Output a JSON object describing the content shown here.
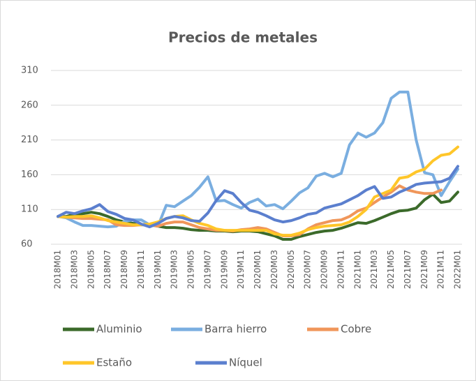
{
  "chart_data": {
    "type": "line",
    "title": "Precios de metales",
    "categories": [
      "2018M01",
      null,
      "2018M03",
      null,
      "2018M05",
      null,
      "2018M07",
      null,
      "2018M09",
      null,
      "2018M11",
      null,
      "2019M01",
      null,
      "2019M03",
      null,
      "2019M05",
      null,
      "2019M07",
      null,
      "2019M09",
      null,
      "2019M11",
      null,
      "2020M01",
      null,
      "2020M03",
      null,
      "2020M05",
      null,
      "2020M07",
      null,
      "2020M09",
      null,
      "2020M11",
      null,
      "2021M01",
      null,
      "2021M03",
      null,
      "2021M05",
      null,
      "2021M07",
      null,
      "2021M09",
      null,
      "2021M11",
      null,
      "2022M01"
    ],
    "series": [
      {
        "name": "Aluminio",
        "color": "#3b6a2a",
        "values": [
          100,
          100,
          103,
          104,
          106,
          104,
          100,
          95,
          92,
          90,
          88,
          88,
          86,
          84,
          84,
          83,
          81,
          80,
          80,
          79,
          79,
          78,
          79,
          79,
          78,
          75,
          72,
          67,
          67,
          71,
          74,
          77,
          79,
          80,
          83,
          87,
          91,
          90,
          94,
          99,
          104,
          108,
          109,
          112,
          124,
          132,
          120,
          122,
          135
        ]
      },
      {
        "name": "Barra hierro",
        "color": "#7aaee0",
        "values": [
          100,
          98,
          92,
          87,
          87,
          86,
          85,
          86,
          93,
          95,
          95,
          88,
          86,
          116,
          114,
          122,
          130,
          142,
          157,
          122,
          123,
          117,
          112,
          120,
          125,
          115,
          117,
          111,
          122,
          134,
          141,
          158,
          162,
          157,
          162,
          203,
          220,
          214,
          220,
          235,
          270,
          279,
          279,
          210,
          163,
          160,
          130,
          150,
          168
        ]
      },
      {
        "name": "Cobre",
        "color": "#f0965a",
        "values": [
          100,
          99,
          98,
          97,
          97,
          96,
          95,
          88,
          87,
          87,
          88,
          88,
          86,
          90,
          92,
          92,
          88,
          84,
          82,
          80,
          80,
          79,
          81,
          82,
          84,
          82,
          77,
          72,
          72,
          74,
          82,
          88,
          91,
          94,
          95,
          100,
          108,
          112,
          120,
          128,
          135,
          144,
          138,
          135,
          133,
          133,
          138,
          null,
          null
        ]
      },
      {
        "name": "Estaño",
        "color": "#ffc629",
        "values": [
          100,
          99,
          100,
          100,
          101,
          98,
          94,
          92,
          90,
          88,
          88,
          89,
          92,
          97,
          100,
          101,
          95,
          90,
          87,
          82,
          80,
          80,
          80,
          80,
          80,
          80,
          75,
          73,
          73,
          76,
          81,
          84,
          86,
          87,
          88,
          92,
          100,
          110,
          128,
          133,
          138,
          155,
          157,
          164,
          168,
          180,
          188,
          190,
          200
        ]
      },
      {
        "name": "Níquel",
        "color": "#5b7fce",
        "values": [
          100,
          106,
          104,
          108,
          111,
          117,
          107,
          103,
          97,
          95,
          89,
          85,
          90,
          97,
          100,
          98,
          94,
          93,
          105,
          123,
          137,
          133,
          120,
          109,
          106,
          101,
          95,
          92,
          94,
          98,
          103,
          105,
          112,
          115,
          118,
          124,
          130,
          138,
          143,
          126,
          128,
          135,
          140,
          146,
          148,
          149,
          150,
          155,
          172
        ]
      }
    ],
    "ylim": [
      60,
      310
    ],
    "yticks": [
      60,
      110,
      160,
      210,
      260,
      310
    ],
    "grid": true
  }
}
